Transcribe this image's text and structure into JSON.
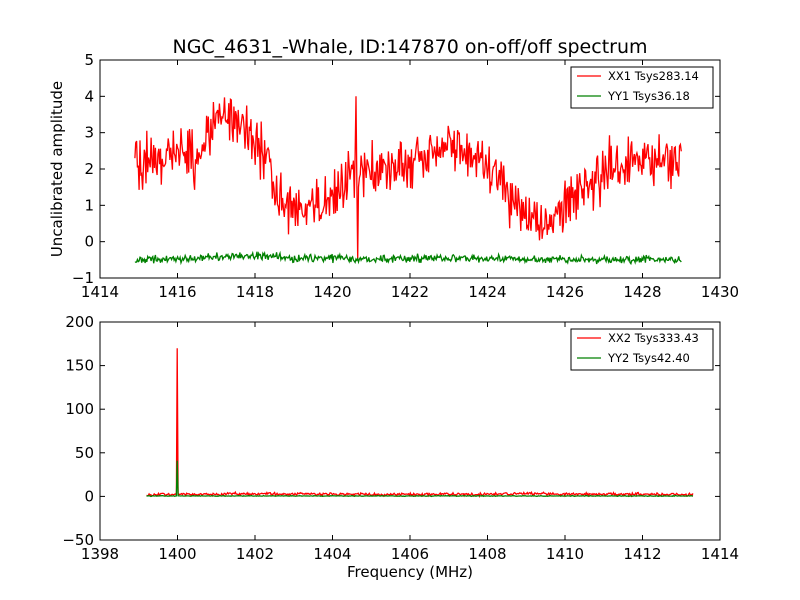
{
  "chart_data": [
    {
      "type": "line",
      "title": "NGC_4631_-Whale, ID:147870 on-off/off spectrum",
      "xlabel": "",
      "ylabel": "Uncalibrated amplitude",
      "xlim": [
        1414,
        1430
      ],
      "ylim": [
        -1,
        5
      ],
      "xticks": [
        1414,
        1416,
        1418,
        1420,
        1422,
        1424,
        1426,
        1428,
        1430
      ],
      "yticks": [
        -1,
        0,
        1,
        2,
        3,
        4,
        5
      ],
      "grid": false,
      "legend_position": "top-right",
      "series": [
        {
          "name": "XX1 Tsys283.14",
          "color": "#ff0000",
          "x_range": [
            1414.9,
            1429.0
          ],
          "baseline_points": [
            [
              1414.9,
              2.2
            ],
            [
              1415.5,
              2.3
            ],
            [
              1416.0,
              2.5
            ],
            [
              1416.5,
              2.2
            ],
            [
              1417.0,
              3.5
            ],
            [
              1417.5,
              3.3
            ],
            [
              1418.0,
              2.7
            ],
            [
              1418.3,
              2.5
            ],
            [
              1418.5,
              1.3
            ],
            [
              1419.0,
              0.9
            ],
            [
              1419.5,
              1.0
            ],
            [
              1420.0,
              1.2
            ],
            [
              1420.5,
              1.9
            ],
            [
              1420.8,
              2.1
            ],
            [
              1421.0,
              2.0
            ],
            [
              1421.5,
              2.1
            ],
            [
              1422.0,
              2.1
            ],
            [
              1422.5,
              2.4
            ],
            [
              1423.0,
              2.7
            ],
            [
              1423.5,
              2.4
            ],
            [
              1424.0,
              2.1
            ],
            [
              1424.5,
              1.3
            ],
            [
              1425.0,
              0.6
            ],
            [
              1425.5,
              0.4
            ],
            [
              1426.0,
              0.9
            ],
            [
              1426.5,
              1.6
            ],
            [
              1427.0,
              2.0
            ],
            [
              1427.5,
              2.2
            ],
            [
              1428.0,
              2.4
            ],
            [
              1428.5,
              2.2
            ],
            [
              1429.0,
              2.3
            ]
          ],
          "noise_amplitude": 0.35,
          "spikes": [
            [
              1420.6,
              4.0
            ],
            [
              1420.65,
              -0.5
            ]
          ]
        },
        {
          "name": "YY1 Tsys36.18",
          "color": "#008000",
          "x_range": [
            1414.9,
            1429.0
          ],
          "baseline_points": [
            [
              1414.9,
              -0.5
            ],
            [
              1416.0,
              -0.48
            ],
            [
              1417.5,
              -0.4
            ],
            [
              1418.3,
              -0.38
            ],
            [
              1419.0,
              -0.46
            ],
            [
              1421.0,
              -0.48
            ],
            [
              1423.0,
              -0.45
            ],
            [
              1425.0,
              -0.48
            ],
            [
              1427.0,
              -0.5
            ],
            [
              1429.0,
              -0.5
            ]
          ],
          "noise_amplitude": 0.05,
          "spikes": []
        }
      ]
    },
    {
      "type": "line",
      "title": "",
      "xlabel": "Frequency (MHz)",
      "ylabel": "",
      "xlim": [
        1398,
        1414
      ],
      "ylim": [
        -50,
        200
      ],
      "xticks": [
        1398,
        1400,
        1402,
        1404,
        1406,
        1408,
        1410,
        1412,
        1414
      ],
      "yticks": [
        -50,
        0,
        50,
        100,
        150,
        200
      ],
      "grid": false,
      "legend_position": "top-right",
      "series": [
        {
          "name": "XX2 Tsys333.43",
          "color": "#ff0000",
          "x_range": [
            1399.2,
            1413.3
          ],
          "baseline_points": [
            [
              1399.2,
              2.0
            ],
            [
              1402.5,
              3.0
            ],
            [
              1404.0,
              2.5
            ],
            [
              1406.0,
              2.0
            ],
            [
              1409.0,
              3.0
            ],
            [
              1413.3,
              2.0
            ]
          ],
          "noise_amplitude": 0.8,
          "spikes": [
            [
              1400.0,
              170
            ]
          ]
        },
        {
          "name": "YY2 Tsys42.40",
          "color": "#008000",
          "x_range": [
            1399.2,
            1413.3
          ],
          "baseline_points": [
            [
              1399.2,
              0.5
            ],
            [
              1413.3,
              0.5
            ]
          ],
          "noise_amplitude": 0.2,
          "spikes": [
            [
              1400.0,
              41
            ]
          ]
        }
      ]
    }
  ]
}
